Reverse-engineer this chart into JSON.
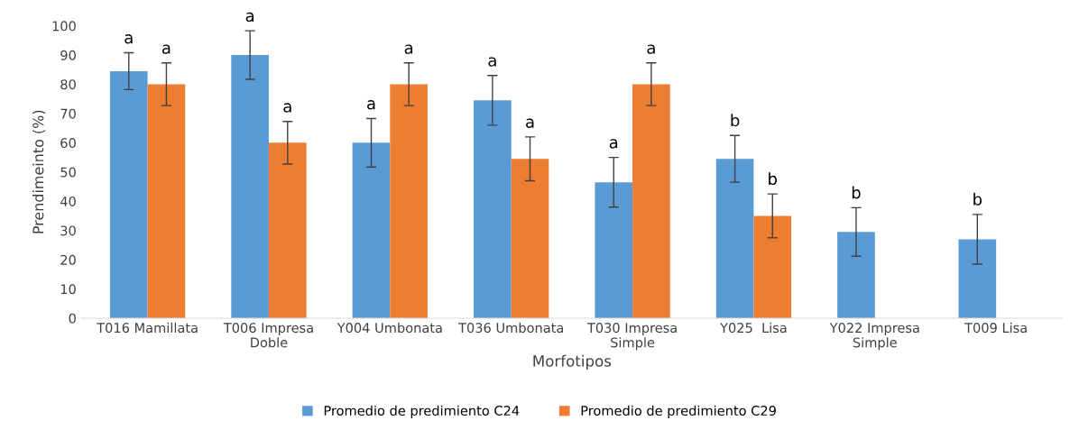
{
  "chart_data": {
    "type": "bar",
    "xlabel": "Morfotipos",
    "ylabel": "Prendimeinto (%)",
    "categories": [
      "T016 Mamillata",
      "T006 Impresa\nDoble",
      "Y004 Umbonata",
      "T036 Umbonata",
      "T030 Impresa\nSimple",
      "Y025  Lisa",
      "Y022 Impresa\nSimple",
      "T009 Lisa"
    ],
    "series": [
      {
        "name": "Promedio de predimiento C24",
        "color": "#5b9bd5",
        "values": [
          84.5,
          90,
          60,
          74.5,
          46.5,
          54.5,
          29.5,
          27
        ],
        "errors": [
          6.3,
          8.3,
          8.3,
          8.5,
          8.5,
          8,
          8.3,
          8.5
        ],
        "value_labels": [
          "a",
          "a",
          "a",
          "a",
          "a",
          "b",
          "b",
          "b"
        ]
      },
      {
        "name": "Promedio de predimiento C29",
        "color": "#ed7d31",
        "values": [
          80,
          60,
          80,
          54.5,
          80,
          35,
          null,
          null
        ],
        "errors": [
          7.3,
          7.3,
          7.3,
          7.5,
          7.3,
          7.5,
          null,
          null
        ],
        "value_labels": [
          "a",
          "a",
          "a",
          "a",
          "a",
          "b",
          null,
          null
        ]
      }
    ],
    "ylim": [
      0,
      100
    ],
    "yticks": [
      0,
      10,
      20,
      30,
      40,
      50,
      60,
      70,
      80,
      90,
      100
    ],
    "grid": false,
    "legend": "bottom"
  }
}
